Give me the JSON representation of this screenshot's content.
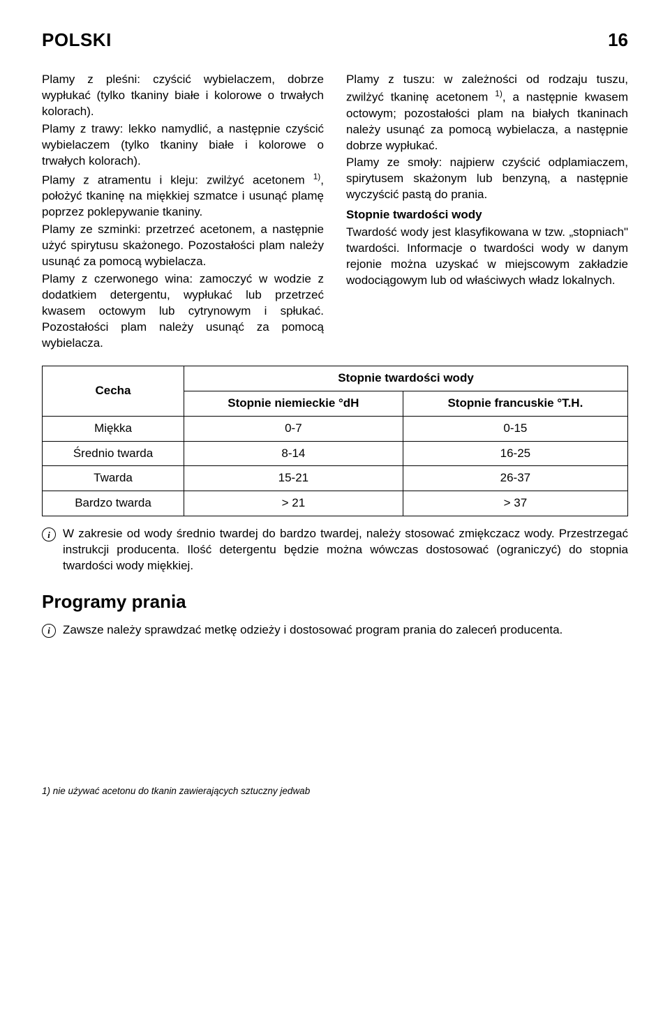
{
  "header": {
    "title": "POLSKI",
    "page_number": "16"
  },
  "left_col": {
    "p1": "Plamy z pleśni: czyścić wybielaczem, dobrze wypłukać (tylko tkaniny białe i kolorowe o trwałych kolorach).",
    "p2": "Plamy z trawy: lekko namydlić, a następnie czyścić wybielaczem (tylko tkaniny białe i kolorowe o trwałych kolorach).",
    "p3a": "Plamy z atramentu i kleju: zwilżyć acetonem ",
    "p3sup": "1)",
    "p3b": ", położyć tkaninę na miękkiej szmatce i usunąć plamę poprzez poklepywanie tkaniny.",
    "p4": "Plamy ze szminki: przetrzeć acetonem, a następnie użyć spirytusu skażonego. Pozostałości plam należy usunąć za pomocą wybielacza.",
    "p5": "Plamy z czerwonego wina: zamoczyć w wodzie z dodatkiem detergentu, wypłukać lub przetrzeć kwasem octowym lub cytrynowym i spłukać. Pozostałości plam należy usunąć za pomocą wybielacza."
  },
  "right_col": {
    "p1a": "Plamy z tuszu: w zależności od rodzaju tuszu, zwilżyć tkaninę acetonem ",
    "p1sup": "1)",
    "p1b": ", a następnie kwasem octowym; pozostałości plam na białych tkaninach należy usunąć za pomocą wybielacza, a następnie dobrze wypłukać.",
    "p2": "Plamy ze smoły: najpierw czyścić odplamiaczem, spirytusem skażonym lub benzyną, a następnie wyczyścić pastą do prania.",
    "sub1": "Stopnie twardości wody",
    "p3": "Twardość wody jest klasyfikowana w tzw. „stopniach\" twardości. Informacje o twardości wody w danym rejonie można uzyskać w miejscowym zakładzie wodociągowym lub od właściwych władz lokalnych."
  },
  "table": {
    "col_cecha": "Cecha",
    "col_header_group": "Stopnie twardości wody",
    "col_de": "Stopnie niemieckie °dH",
    "col_fr": "Stopnie francuskie °T.H.",
    "rows": [
      {
        "name": "Miękka",
        "de": "0-7",
        "fr": "0-15"
      },
      {
        "name": "Średnio twarda",
        "de": "8-14",
        "fr": "16-25"
      },
      {
        "name": "Twarda",
        "de": "15-21",
        "fr": "26-37"
      },
      {
        "name": "Bardzo twarda",
        "de": "> 21",
        "fr": "> 37"
      }
    ]
  },
  "info1": "W zakresie od wody średnio twardej do bardzo twardej, należy stosować zmiękczacz wody. Przestrzegać instrukcji producenta. Ilość detergentu będzie można wówczas dostosować (ograniczyć) do stopnia twardości wody miękkiej.",
  "section2_title": "Programy prania",
  "info2": "Zawsze należy sprawdzać metkę odzieży i dostosować program prania do zaleceń producenta.",
  "footnote": "1) nie używać acetonu do tkanin zawierających sztuczny jedwab",
  "icon_glyph": "i"
}
